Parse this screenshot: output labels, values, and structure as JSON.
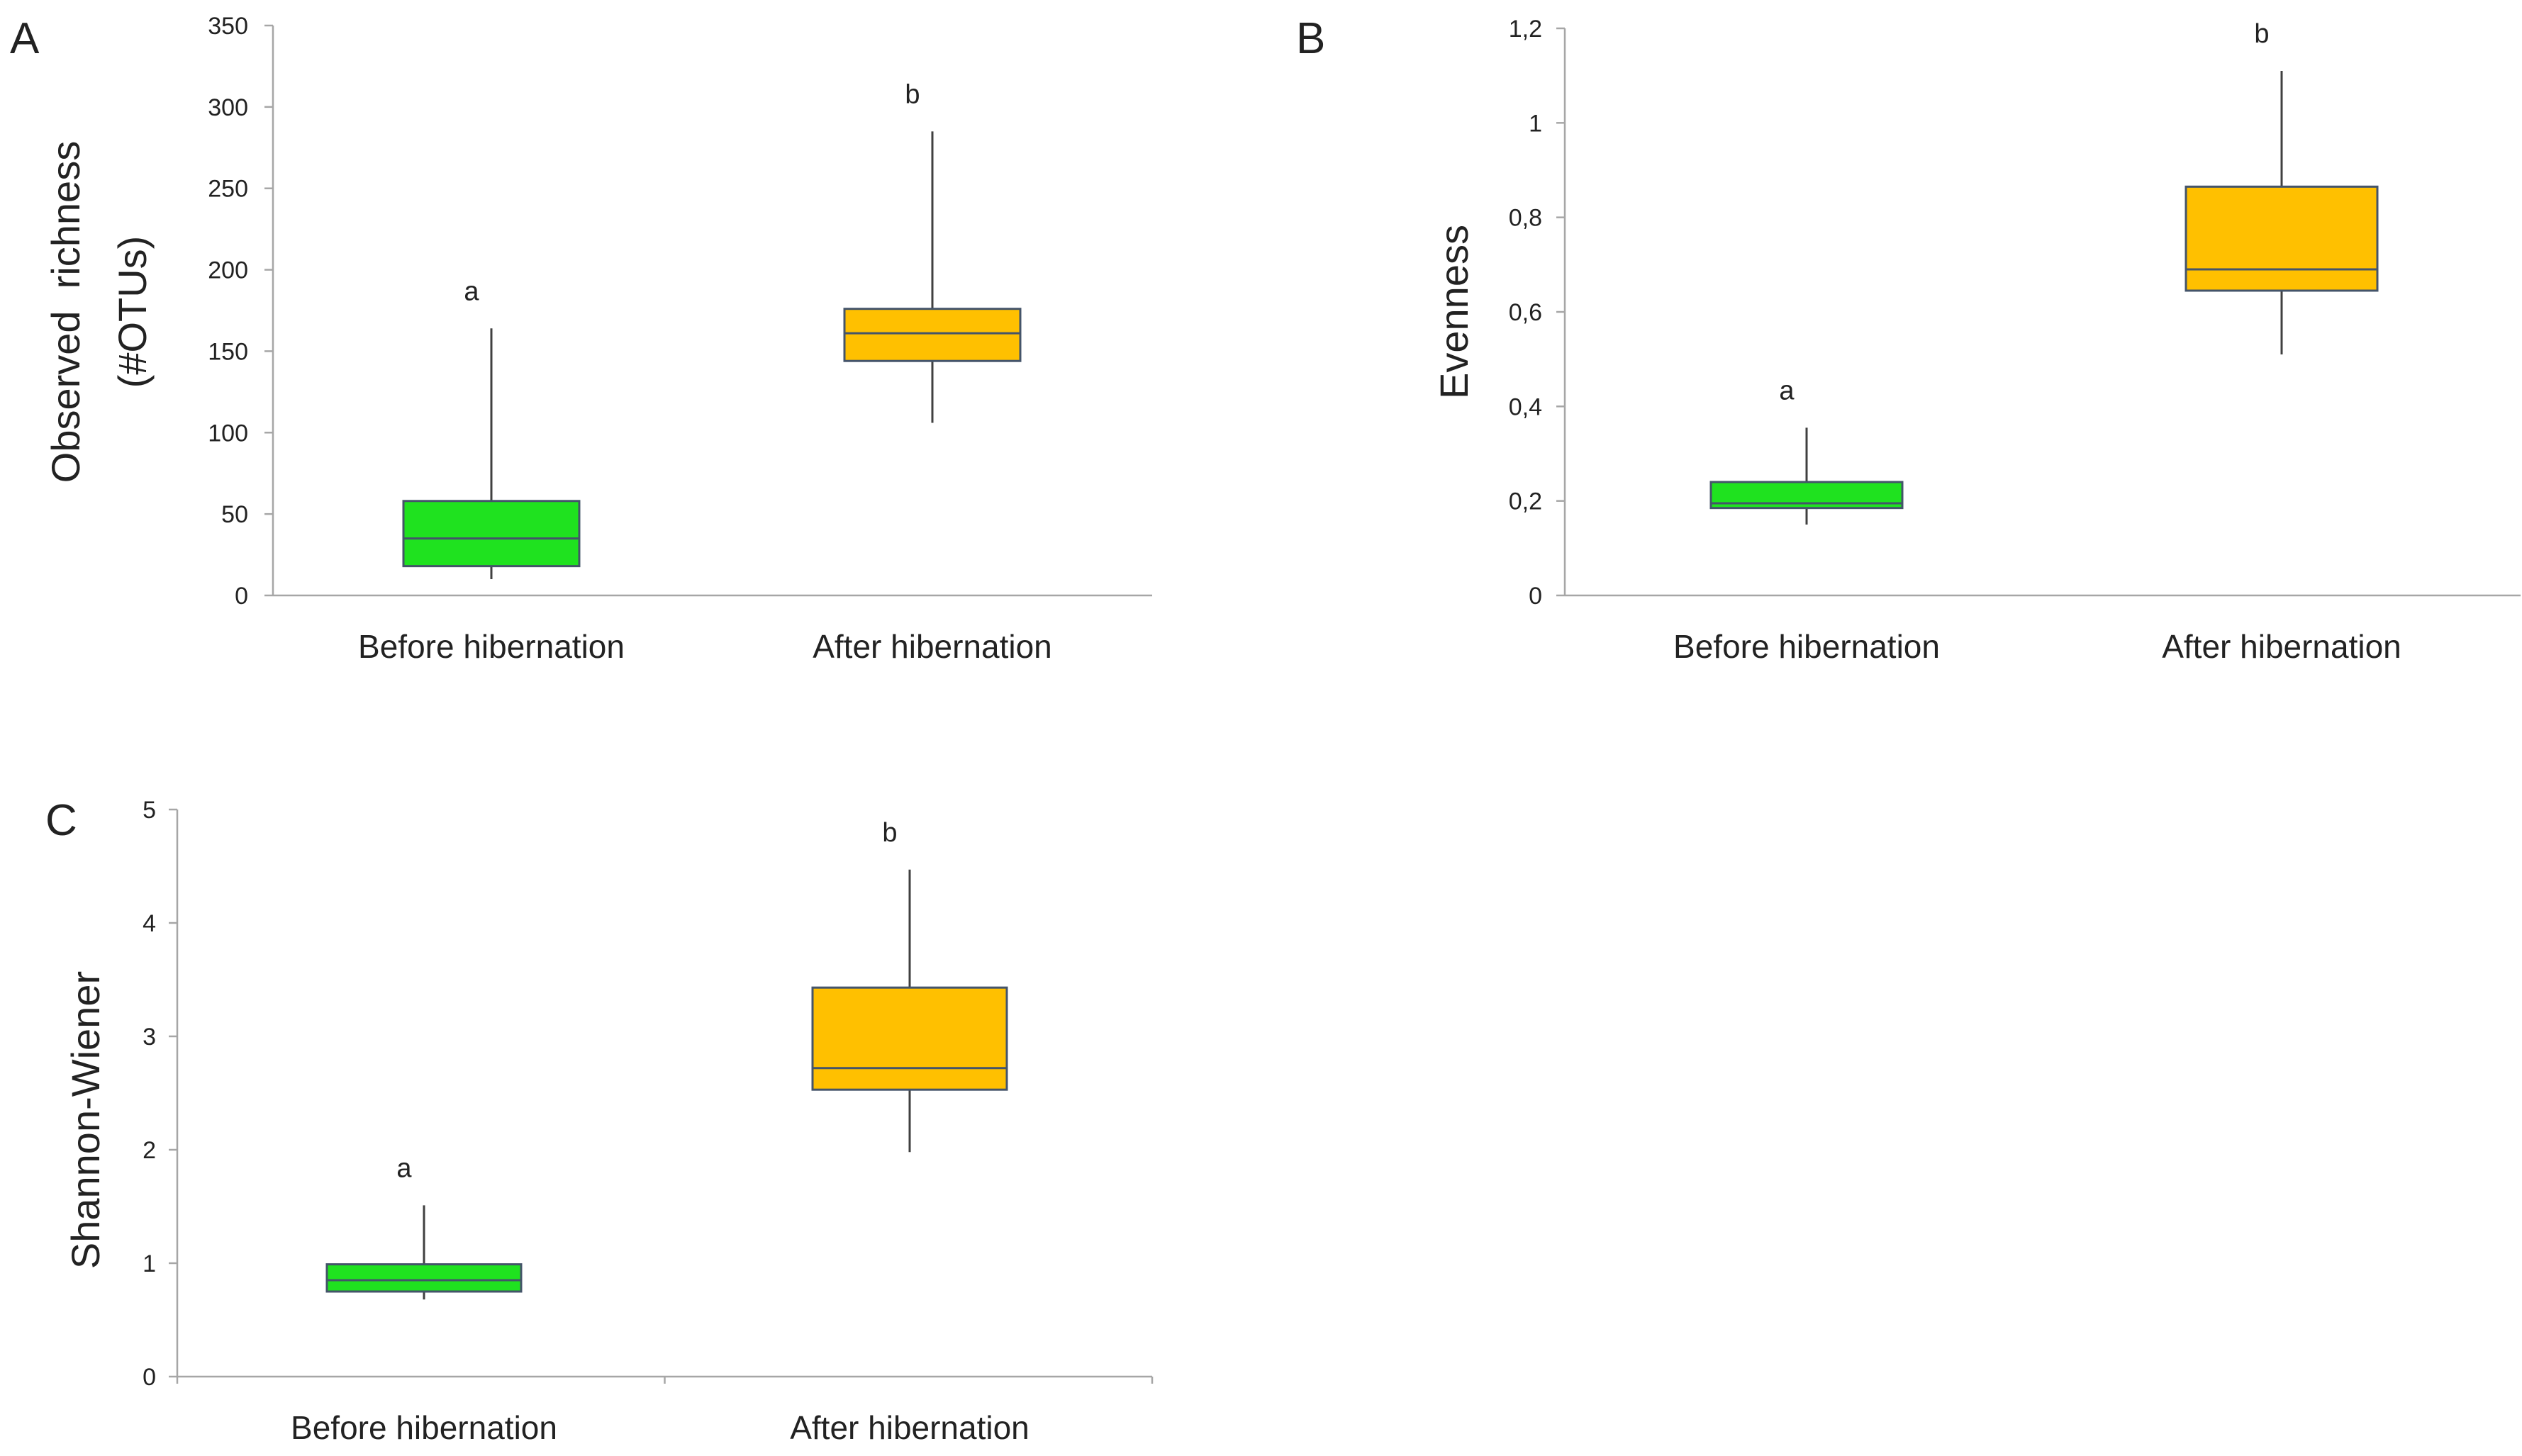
{
  "colors": {
    "before": "#1fe21f",
    "after": "#ffc000",
    "axis": "#a6a6a6",
    "text": "#222222"
  },
  "chart_data": [
    {
      "type": "boxplot",
      "panel": "A",
      "ylabel_lines": [
        "Observed  richness",
        "(#OTUs)"
      ],
      "categories": [
        "Before hibernation",
        "After hibernation"
      ],
      "ylim": [
        0,
        350
      ],
      "yticks": [
        "0",
        "50",
        "100",
        "150",
        "200",
        "250",
        "300",
        "350"
      ],
      "ytick_values": [
        0,
        50,
        100,
        150,
        200,
        250,
        300,
        350
      ],
      "boxes": [
        {
          "group": "Before hibernation",
          "min": 10,
          "q1": 18,
          "median": 35,
          "q3": 58,
          "max": 164,
          "sig": "a",
          "color_key": "before"
        },
        {
          "group": "After hibernation",
          "min": 106,
          "q1": 144,
          "median": 161,
          "q3": 176,
          "max": 285,
          "sig": "b",
          "color_key": "after"
        }
      ],
      "category_axis_divider": false
    },
    {
      "type": "boxplot",
      "panel": "B",
      "ylabel_lines": [
        "Evenness"
      ],
      "categories": [
        "Before hibernation",
        "After hibernation"
      ],
      "ylim": [
        0,
        1.2
      ],
      "yticks": [
        "0",
        "0,2",
        "0,4",
        "0,6",
        "0,8",
        "1",
        "1,2"
      ],
      "ytick_values": [
        0,
        0.2,
        0.4,
        0.6,
        0.8,
        1.0,
        1.2
      ],
      "boxes": [
        {
          "group": "Before hibernation",
          "min": 0.15,
          "q1": 0.185,
          "median": 0.195,
          "q3": 0.24,
          "max": 0.355,
          "sig": "a",
          "color_key": "before"
        },
        {
          "group": "After hibernation",
          "min": 0.51,
          "q1": 0.645,
          "median": 0.69,
          "q3": 0.865,
          "max": 1.11,
          "sig": "b",
          "color_key": "after"
        }
      ],
      "category_axis_divider": false
    },
    {
      "type": "boxplot",
      "panel": "C",
      "ylabel_lines": [
        "Shannon-Wiener"
      ],
      "categories": [
        "Before hibernation",
        "After hibernation"
      ],
      "ylim": [
        0,
        5
      ],
      "yticks": [
        "0",
        "1",
        "2",
        "3",
        "4",
        "5"
      ],
      "ytick_values": [
        0,
        1,
        2,
        3,
        4,
        5
      ],
      "boxes": [
        {
          "group": "Before hibernation",
          "min": 0.68,
          "q1": 0.75,
          "median": 0.85,
          "q3": 0.99,
          "max": 1.51,
          "sig": "a",
          "color_key": "before"
        },
        {
          "group": "After hibernation",
          "min": 1.98,
          "q1": 2.53,
          "median": 2.72,
          "q3": 3.43,
          "max": 4.47,
          "sig": "b",
          "color_key": "after"
        }
      ],
      "category_axis_divider": true
    }
  ]
}
